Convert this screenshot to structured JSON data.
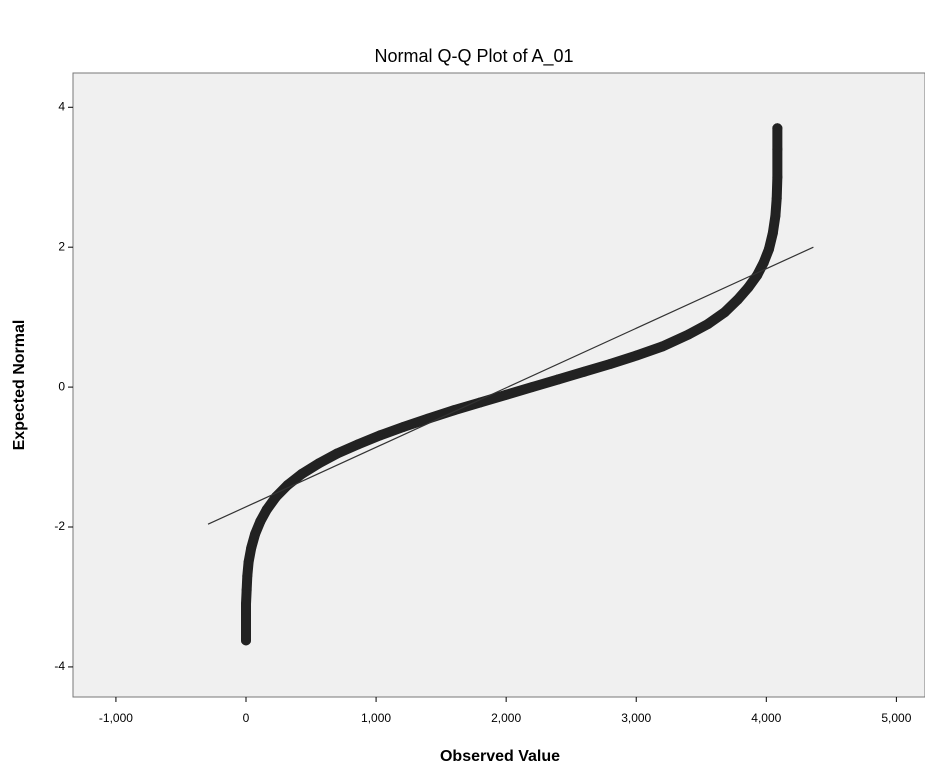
{
  "chart_data": {
    "type": "qq",
    "title": "Normal Q-Q Plot of A_01",
    "x_label": "Observed Value",
    "y_label": "Expected Normal",
    "xlim": [
      -1330,
      5220
    ],
    "ylim": [
      -4.43,
      4.49
    ],
    "xticks": [
      {
        "value": -1000,
        "label": "-1,000"
      },
      0,
      {
        "value": 1000,
        "label": "1,000"
      },
      {
        "value": 2000,
        "label": "2,000"
      },
      {
        "value": 3000,
        "label": "3,000"
      },
      {
        "value": 4000,
        "label": "4,000"
      },
      {
        "value": 5000,
        "label": "5,000"
      }
    ],
    "yticks": [
      4,
      2,
      0,
      -2,
      -4
    ],
    "series": [
      {
        "kind": "points",
        "color": "#222222",
        "x": [
          0,
          0,
          0,
          5,
          10,
          20,
          40,
          70,
          110,
          160,
          230,
          320,
          430,
          560,
          700,
          860,
          1030,
          1210,
          1400,
          1600,
          1800,
          2000,
          2200,
          2400,
          2600,
          2800,
          3000,
          3200,
          3400,
          3550,
          3680,
          3780,
          3860,
          3930,
          3980,
          4020,
          4050,
          4070,
          4080,
          4085,
          4085,
          4085
        ],
        "values": [
          -3.62,
          -3.3,
          -3.1,
          -2.9,
          -2.7,
          -2.5,
          -2.3,
          -2.1,
          -1.92,
          -1.75,
          -1.57,
          -1.4,
          -1.24,
          -1.09,
          -0.95,
          -0.82,
          -0.69,
          -0.57,
          -0.45,
          -0.33,
          -0.22,
          -0.11,
          0,
          0.11,
          0.22,
          0.33,
          0.45,
          0.58,
          0.75,
          0.9,
          1.07,
          1.25,
          1.42,
          1.6,
          1.78,
          1.97,
          2.2,
          2.45,
          2.7,
          3.0,
          3.4,
          3.7
        ]
      },
      {
        "kind": "line",
        "color": "#333333",
        "x": [
          -292,
          4362
        ],
        "values": [
          -1.96,
          2.0
        ]
      }
    ]
  }
}
